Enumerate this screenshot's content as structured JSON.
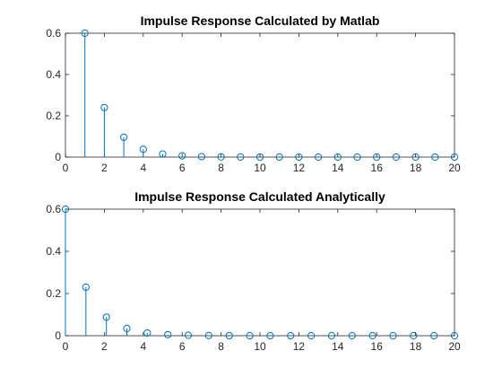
{
  "figure": {
    "background": "#ffffff"
  },
  "style": {
    "series_color": "#0072BD",
    "axis_color": "#262626",
    "frame_color": "#262626"
  },
  "chart_data": [
    {
      "type": "stem",
      "title": "Impulse Response Calculated by Matlab",
      "xlabel": "",
      "ylabel": "",
      "xlim": [
        0,
        20
      ],
      "ylim": [
        0,
        0.6
      ],
      "x_ticks": [
        "0",
        "2",
        "4",
        "6",
        "8",
        "10",
        "12",
        "14",
        "16",
        "18",
        "20"
      ],
      "y_ticks": [
        "0",
        "0.2",
        "0.4",
        "0.6"
      ],
      "grid": false,
      "box": true,
      "x": [
        1,
        2,
        3,
        4,
        5,
        6,
        7,
        8,
        9,
        10,
        11,
        12,
        13,
        14,
        15,
        16,
        17,
        18,
        19,
        20
      ],
      "y": [
        0.6,
        0.24,
        0.096,
        0.038,
        0.015,
        0.006,
        0.0025,
        0.001,
        0.0004,
        0.0002,
        0.0001,
        3e-05,
        1e-05,
        0,
        0,
        0,
        0,
        0,
        0,
        0
      ]
    },
    {
      "type": "stem",
      "title": "Impulse Response Calculated Analytically",
      "xlabel": "",
      "ylabel": "",
      "xlim": [
        0,
        20
      ],
      "ylim": [
        0,
        0.6
      ],
      "x_ticks": [
        "0",
        "2",
        "4",
        "6",
        "8",
        "10",
        "12",
        "14",
        "16",
        "18",
        "20"
      ],
      "y_ticks": [
        "0",
        "0.2",
        "0.4",
        "0.6"
      ],
      "grid": false,
      "box": true,
      "x": [
        0,
        1.0526,
        2.1053,
        3.1579,
        4.2105,
        5.2632,
        6.3158,
        7.3684,
        8.4211,
        9.4737,
        10.5263,
        11.5789,
        12.6316,
        13.6842,
        14.7368,
        15.7895,
        16.8421,
        17.8947,
        18.9474,
        20
      ],
      "y": [
        0.6,
        0.23,
        0.088,
        0.034,
        0.013,
        0.005,
        0.002,
        0.0008,
        0.0003,
        0.0001,
        5e-05,
        2e-05,
        1e-05,
        0,
        0,
        0,
        0,
        0,
        0,
        0
      ]
    }
  ]
}
